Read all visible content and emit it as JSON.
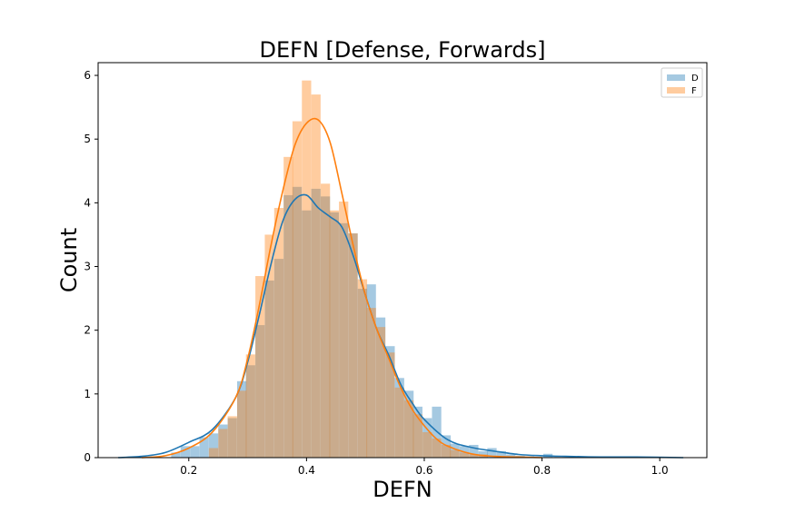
{
  "chart_data": {
    "type": "bar",
    "title": "DEFN [Defense, Forwards]",
    "xlabel": "DEFN",
    "ylabel": "Count",
    "xlim": [
      0.046,
      1.08
    ],
    "ylim": [
      0,
      6.2
    ],
    "xticks": [
      "0.2",
      "0.4",
      "0.6",
      "0.8",
      "1.0"
    ],
    "yticks": [
      "0",
      "1",
      "2",
      "3",
      "4",
      "5",
      "6"
    ],
    "grid": false,
    "legend": {
      "placement": "top-right",
      "entries": [
        "D",
        "F"
      ]
    },
    "bin_width": 0.0158,
    "series": [
      {
        "name": "D",
        "color": "#1f77b4",
        "bins": [
          [
            0.178,
            0.08
          ],
          [
            0.194,
            0.18
          ],
          [
            0.21,
            0.18
          ],
          [
            0.226,
            0.32
          ],
          [
            0.242,
            0.38
          ],
          [
            0.258,
            0.52
          ],
          [
            0.274,
            0.62
          ],
          [
            0.29,
            1.2
          ],
          [
            0.305,
            1.45
          ],
          [
            0.321,
            2.08
          ],
          [
            0.337,
            2.78
          ],
          [
            0.353,
            3.12
          ],
          [
            0.369,
            4.12
          ],
          [
            0.384,
            4.25
          ],
          [
            0.4,
            3.88
          ],
          [
            0.416,
            4.22
          ],
          [
            0.432,
            4.1
          ],
          [
            0.447,
            3.85
          ],
          [
            0.463,
            3.68
          ],
          [
            0.479,
            3.52
          ],
          [
            0.495,
            2.65
          ],
          [
            0.51,
            2.72
          ],
          [
            0.526,
            2.2
          ],
          [
            0.542,
            1.75
          ],
          [
            0.558,
            1.25
          ],
          [
            0.574,
            1.05
          ],
          [
            0.589,
            0.8
          ],
          [
            0.605,
            0.62
          ],
          [
            0.621,
            0.8
          ],
          [
            0.637,
            0.35
          ],
          [
            0.652,
            0.22
          ],
          [
            0.668,
            0.18
          ],
          [
            0.684,
            0.2
          ],
          [
            0.7,
            0.1
          ],
          [
            0.715,
            0.15
          ],
          [
            0.731,
            0.1
          ],
          [
            0.747,
            0.05
          ],
          [
            0.763,
            0.03
          ],
          [
            0.779,
            0.02
          ],
          [
            0.81,
            0.06
          ],
          [
            0.925,
            0.02
          ],
          [
            1.02,
            0.01
          ]
        ],
        "kde_x": [
          0.08,
          0.12,
          0.16,
          0.2,
          0.24,
          0.28,
          0.3,
          0.32,
          0.34,
          0.36,
          0.38,
          0.4,
          0.42,
          0.44,
          0.46,
          0.48,
          0.5,
          0.52,
          0.54,
          0.56,
          0.58,
          0.6,
          0.64,
          0.68,
          0.72,
          0.76,
          0.8,
          0.84,
          0.9,
          0.96,
          1.04
        ],
        "kde_y": [
          0.0,
          0.02,
          0.08,
          0.24,
          0.44,
          0.95,
          1.5,
          2.25,
          3.05,
          3.72,
          4.05,
          4.12,
          3.92,
          3.78,
          3.62,
          3.15,
          2.55,
          2.0,
          1.6,
          1.15,
          0.85,
          0.6,
          0.28,
          0.16,
          0.1,
          0.05,
          0.03,
          0.02,
          0.01,
          0.01,
          0.0
        ]
      },
      {
        "name": "F",
        "color": "#ff7f0e",
        "bins": [
          [
            0.242,
            0.15
          ],
          [
            0.258,
            0.45
          ],
          [
            0.274,
            0.65
          ],
          [
            0.29,
            1.05
          ],
          [
            0.305,
            1.62
          ],
          [
            0.321,
            2.85
          ],
          [
            0.337,
            3.5
          ],
          [
            0.353,
            3.92
          ],
          [
            0.369,
            4.72
          ],
          [
            0.384,
            5.28
          ],
          [
            0.4,
            5.92
          ],
          [
            0.416,
            5.7
          ],
          [
            0.432,
            4.3
          ],
          [
            0.447,
            3.88
          ],
          [
            0.463,
            4.02
          ],
          [
            0.479,
            3.52
          ],
          [
            0.495,
            2.8
          ],
          [
            0.51,
            2.35
          ],
          [
            0.526,
            2.05
          ],
          [
            0.542,
            1.65
          ],
          [
            0.558,
            1.1
          ],
          [
            0.574,
            0.9
          ],
          [
            0.589,
            0.68
          ],
          [
            0.605,
            0.4
          ],
          [
            0.621,
            0.3
          ],
          [
            0.637,
            0.2
          ],
          [
            0.652,
            0.12
          ],
          [
            0.668,
            0.08
          ],
          [
            0.684,
            0.05
          ],
          [
            0.7,
            0.05
          ]
        ],
        "kde_x": [
          0.12,
          0.16,
          0.2,
          0.24,
          0.28,
          0.3,
          0.32,
          0.34,
          0.36,
          0.38,
          0.4,
          0.42,
          0.44,
          0.46,
          0.48,
          0.5,
          0.52,
          0.54,
          0.56,
          0.58,
          0.6,
          0.62,
          0.64,
          0.68,
          0.72,
          0.76,
          0.8
        ],
        "kde_y": [
          0.0,
          0.03,
          0.15,
          0.4,
          0.95,
          1.55,
          2.4,
          3.35,
          4.2,
          4.9,
          5.25,
          5.3,
          4.95,
          4.15,
          3.3,
          2.55,
          2.0,
          1.55,
          1.1,
          0.75,
          0.5,
          0.3,
          0.18,
          0.06,
          0.02,
          0.01,
          0.0
        ]
      }
    ]
  }
}
